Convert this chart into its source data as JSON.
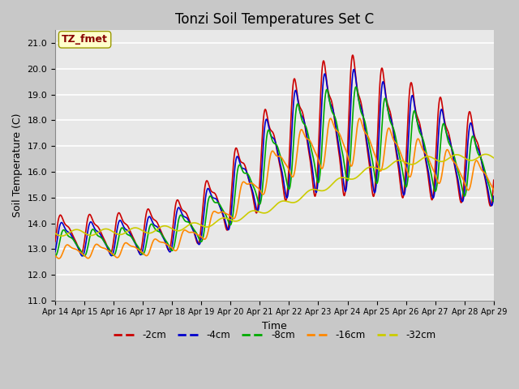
{
  "title": "Tonzi Soil Temperatures Set C",
  "xlabel": "Time",
  "ylabel": "Soil Temperature (C)",
  "ylim": [
    11.0,
    21.5
  ],
  "yticks": [
    11.0,
    12.0,
    13.0,
    14.0,
    15.0,
    16.0,
    17.0,
    18.0,
    19.0,
    20.0,
    21.0
  ],
  "xtick_labels": [
    "Apr 14",
    "Apr 15",
    "Apr 16",
    "Apr 17",
    "Apr 18",
    "Apr 19",
    "Apr 20",
    "Apr 21",
    "Apr 22",
    "Apr 23",
    "Apr 24",
    "Apr 25",
    "Apr 26",
    "Apr 27",
    "Apr 28",
    "Apr 29"
  ],
  "colors": {
    "-2cm": "#cc0000",
    "-4cm": "#0000cc",
    "-8cm": "#00aa00",
    "-16cm": "#ff8800",
    "-32cm": "#cccc00"
  },
  "legend_labels": [
    "-2cm",
    "-4cm",
    "-8cm",
    "-16cm",
    "-32cm"
  ],
  "annotation_text": "TZ_fmet",
  "annotation_box_color": "#ffffcc",
  "annotation_text_color": "#880000",
  "fig_bg_color": "#c8c8c8",
  "plot_bg_color": "#e8e8e8",
  "line_width": 1.2,
  "title_fontsize": 12,
  "axis_fontsize": 9,
  "tick_fontsize": 8
}
